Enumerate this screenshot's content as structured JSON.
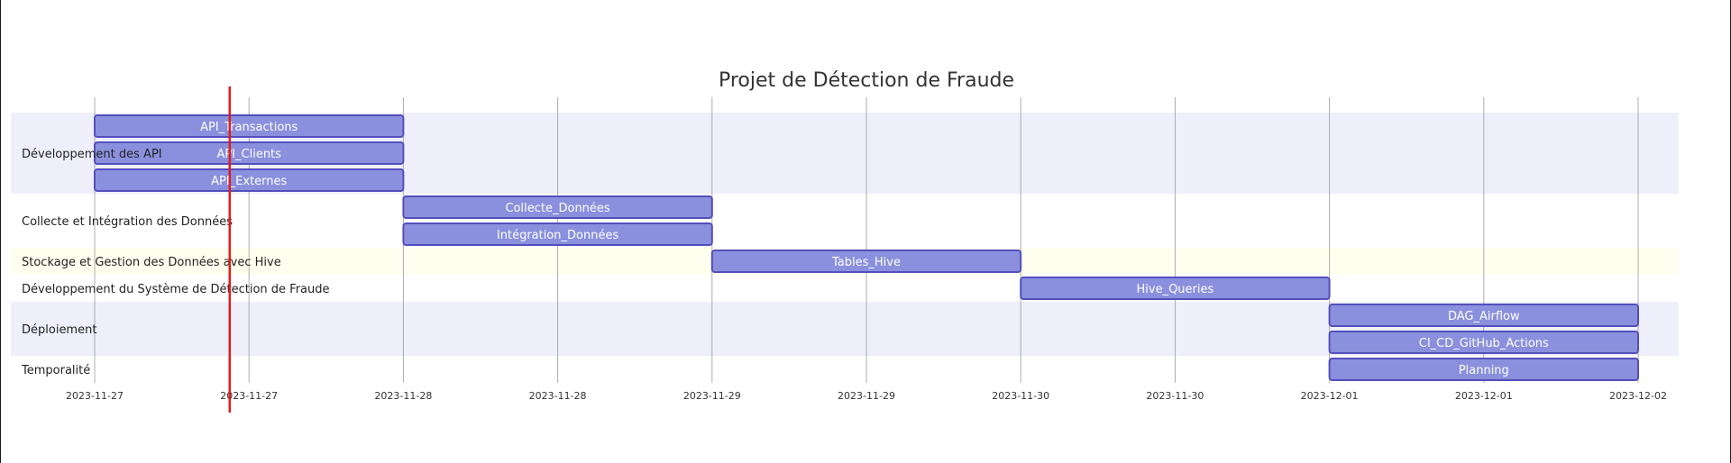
{
  "chart_data": {
    "type": "gantt",
    "title": "Projet de Détection de Fraude",
    "x_ticks": [
      "2023-11-27",
      "2023-11-27",
      "2023-11-28",
      "2023-11-28",
      "2023-11-29",
      "2023-11-29",
      "2023-11-30",
      "2023-11-30",
      "2023-12-01",
      "2023-12-01",
      "2023-12-02"
    ],
    "x_range": [
      "2023-11-27T00:00",
      "2023-12-02T00:00"
    ],
    "today_marker": "2023-11-27T10:30",
    "sections": [
      {
        "name": "Développement des API",
        "tasks": [
          {
            "name": "API_Transactions",
            "start": "2023-11-27T00:00",
            "end": "2023-11-28T00:00"
          },
          {
            "name": "API_Clients",
            "start": "2023-11-27T00:00",
            "end": "2023-11-28T00:00"
          },
          {
            "name": "API_Externes",
            "start": "2023-11-27T00:00",
            "end": "2023-11-28T00:00"
          }
        ]
      },
      {
        "name": "Collecte et Intégration des Données",
        "tasks": [
          {
            "name": "Collecte_Données",
            "start": "2023-11-28T00:00",
            "end": "2023-11-29T00:00"
          },
          {
            "name": "Intégration_Données",
            "start": "2023-11-28T00:00",
            "end": "2023-11-29T00:00"
          }
        ]
      },
      {
        "name": "Stockage et Gestion des Données avec Hive",
        "tasks": [
          {
            "name": "Tables_Hive",
            "start": "2023-11-29T00:00",
            "end": "2023-11-30T00:00"
          }
        ]
      },
      {
        "name": "Développement du Système de Détection de Fraude",
        "tasks": [
          {
            "name": "Hive_Queries",
            "start": "2023-11-30T00:00",
            "end": "2023-12-01T00:00"
          }
        ]
      },
      {
        "name": "Déploiement",
        "tasks": [
          {
            "name": "DAG_Airflow",
            "start": "2023-12-01T00:00",
            "end": "2023-12-02T00:00"
          },
          {
            "name": "CI_CD_GitHub_Actions",
            "start": "2023-12-01T00:00",
            "end": "2023-12-02T00:00"
          }
        ]
      },
      {
        "name": "Temporalité",
        "tasks": [
          {
            "name": "Planning",
            "start": "2023-12-01T00:00",
            "end": "2023-12-02T00:00"
          }
        ]
      }
    ],
    "colors": {
      "bar_fill": "#8a90dd",
      "bar_stroke": "#534fbc",
      "section_band_a": "#efeffc",
      "section_band_b": "#ffffff",
      "section_band_c": "#fffff0",
      "grid": "#999999",
      "today": "#e01b1b"
    }
  }
}
